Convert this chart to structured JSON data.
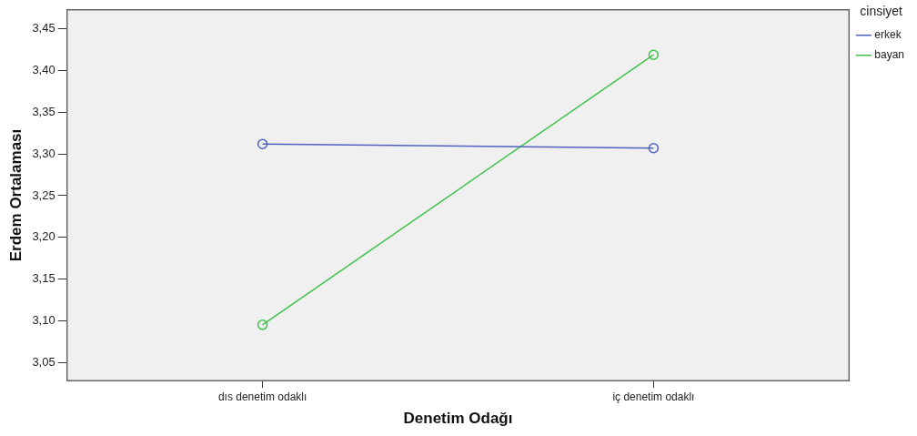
{
  "chart_data": {
    "type": "line",
    "xlabel": "Denetim Odağı",
    "ylabel": "Erdem Ortalaması",
    "legend_title": "cinsiyet",
    "categories": [
      "dıs denetim odaklı",
      "iç denetim odaklı"
    ],
    "series": [
      {
        "name": "erkek",
        "color": "#4f62c0",
        "values": [
          3.312,
          3.307
        ]
      },
      {
        "name": "bayan",
        "color": "#3ec24a",
        "values": [
          3.095,
          3.419
        ]
      }
    ],
    "ylim": [
      3.028,
      3.473
    ],
    "yticks": [
      {
        "value": 3.05,
        "label": "3,05"
      },
      {
        "value": 3.1,
        "label": "3,10"
      },
      {
        "value": 3.15,
        "label": "3,15"
      },
      {
        "value": 3.2,
        "label": "3,20"
      },
      {
        "value": 3.25,
        "label": "3,25"
      },
      {
        "value": 3.3,
        "label": "3,30"
      },
      {
        "value": 3.35,
        "label": "3,35"
      },
      {
        "value": 3.4,
        "label": "3,40"
      },
      {
        "value": 3.45,
        "label": "3,45"
      }
    ],
    "grid": false,
    "legend": "top right",
    "marker": "circle",
    "line_style": "solid"
  }
}
